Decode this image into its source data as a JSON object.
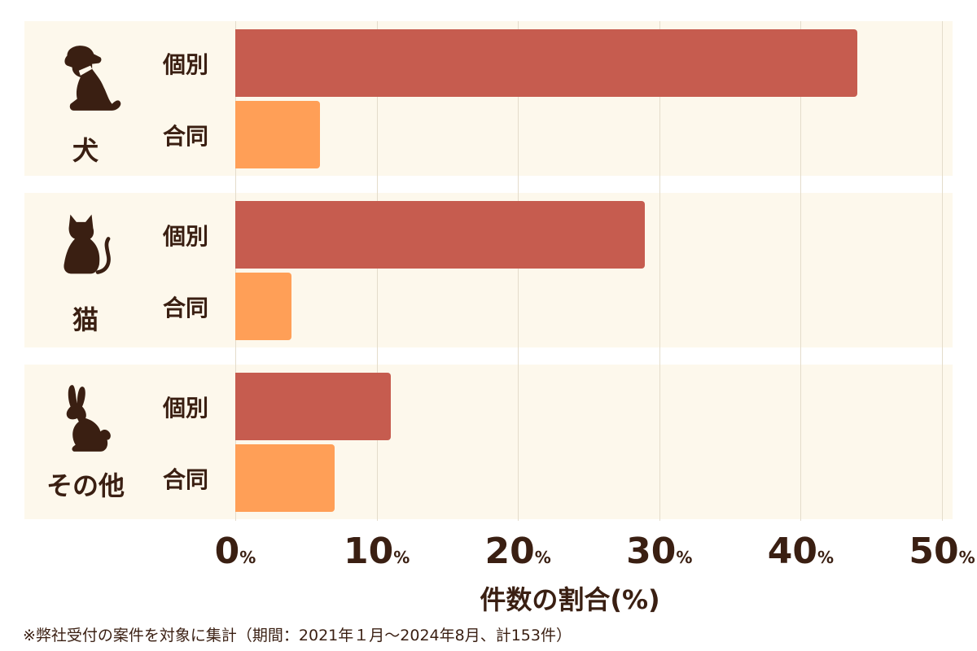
{
  "chart_data": {
    "type": "bar",
    "orientation": "horizontal",
    "groups": [
      {
        "label": "犬",
        "icon": "dog-icon"
      },
      {
        "label": "猫",
        "icon": "cat-icon"
      },
      {
        "label": "その他",
        "icon": "rabbit-icon"
      }
    ],
    "series": [
      {
        "name": "個別",
        "color": "#c65c4f",
        "values": [
          44,
          29,
          11
        ]
      },
      {
        "name": "合同",
        "color": "#ff9f57",
        "values": [
          6,
          4,
          7
        ]
      }
    ],
    "xlim": [
      0,
      50
    ],
    "ticks": [
      {
        "value": 0,
        "num": "0",
        "unit": "%"
      },
      {
        "value": 10,
        "num": "10",
        "unit": "%"
      },
      {
        "value": 20,
        "num": "20",
        "unit": "%"
      },
      {
        "value": 30,
        "num": "30",
        "unit": "%"
      },
      {
        "value": 40,
        "num": "40",
        "unit": "%"
      },
      {
        "value": 50,
        "num": "50",
        "unit": "%"
      }
    ],
    "xlabel": "件数の割合(%)",
    "grid": true,
    "footnote": "※弊社受付の案件を対象に集計（期間：2021年１月～2024年8月、計153件）",
    "colors": {
      "band": "#fdf8ec",
      "text": "#3a1f12",
      "grid": "#e4dccb"
    }
  }
}
